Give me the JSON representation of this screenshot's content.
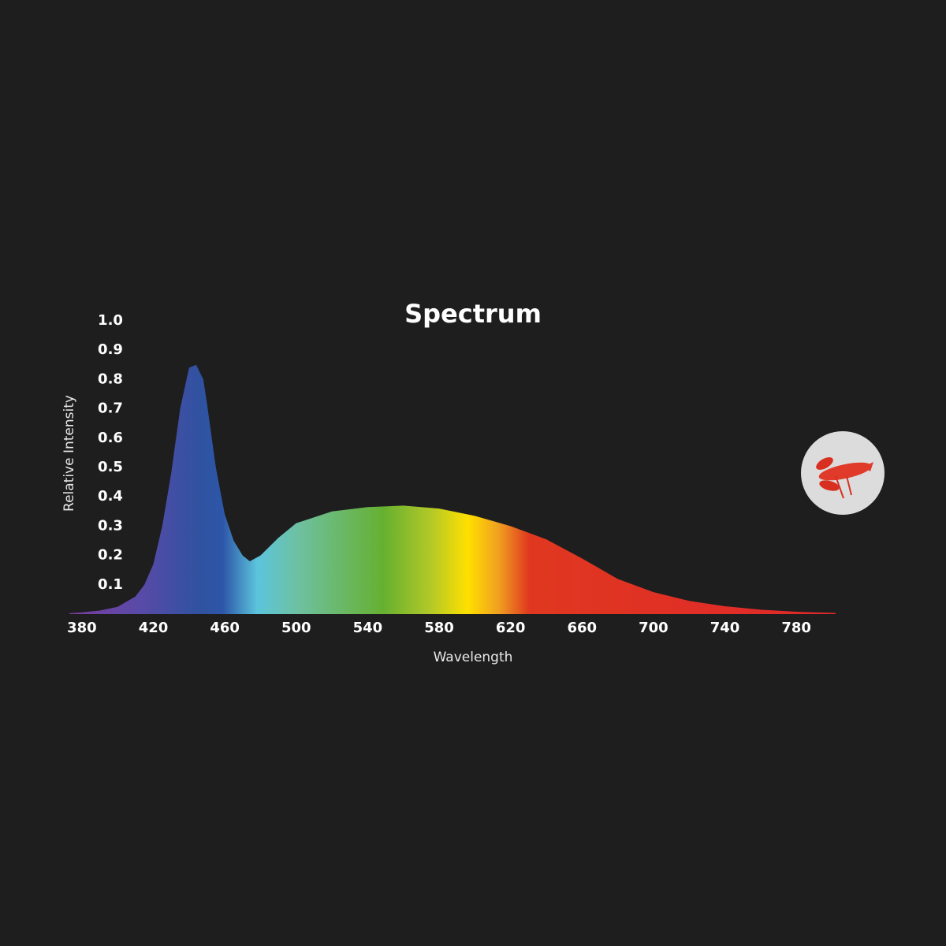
{
  "chart_data": {
    "type": "area",
    "title": "Spectrum",
    "x_label": "Wavelength",
    "y_label": "Relative Intensity",
    "x": [
      373,
      380,
      390,
      400,
      410,
      415,
      420,
      425,
      430,
      435,
      440,
      444,
      448,
      450,
      455,
      460,
      465,
      470,
      474,
      480,
      490,
      500,
      520,
      540,
      560,
      580,
      600,
      620,
      640,
      660,
      680,
      700,
      720,
      740,
      760,
      780,
      802
    ],
    "y": [
      0.003,
      0.006,
      0.012,
      0.025,
      0.06,
      0.1,
      0.17,
      0.3,
      0.48,
      0.7,
      0.84,
      0.85,
      0.8,
      0.72,
      0.5,
      0.34,
      0.25,
      0.2,
      0.18,
      0.2,
      0.26,
      0.31,
      0.35,
      0.365,
      0.37,
      0.36,
      0.335,
      0.3,
      0.255,
      0.19,
      0.12,
      0.075,
      0.045,
      0.027,
      0.015,
      0.008,
      0.004
    ],
    "xlim": [
      373,
      802
    ],
    "ylim": [
      0,
      1
    ],
    "xticks": [
      380,
      420,
      460,
      500,
      540,
      580,
      620,
      660,
      700,
      740,
      780
    ],
    "yticks": [
      0.1,
      0.2,
      0.3,
      0.4,
      0.5,
      0.6,
      0.7,
      0.8,
      0.9,
      {
        "value": 1,
        "label": "1.0"
      }
    ],
    "grid": false
  }
}
